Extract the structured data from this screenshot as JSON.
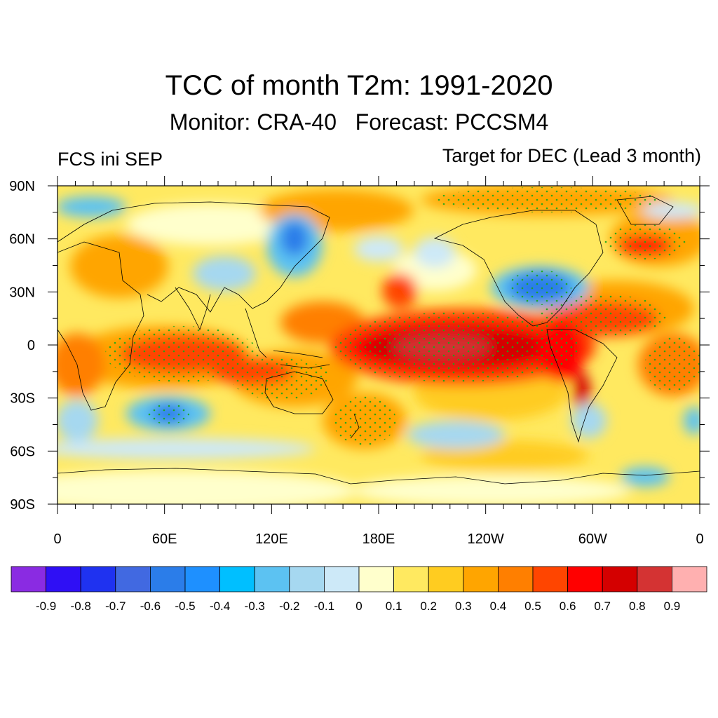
{
  "title": "TCC of month T2m: 1991-2020",
  "subtitle": "Monitor: CRA-40   Forecast: PCCSM4",
  "left_label": "FCS ini SEP",
  "right_label": "Target for DEC (Lead 3 month)",
  "lat_labels": [
    "90N",
    "60N",
    "30N",
    "0",
    "30S",
    "60S",
    "90S"
  ],
  "lon_labels": [
    "0",
    "60E",
    "120E",
    "180E",
    "120W",
    "60W",
    "0"
  ],
  "colorbar": {
    "colors": [
      "#8a2be2",
      "#2f0ff5",
      "#1f32f0",
      "#4169e1",
      "#2b7de9",
      "#1e90ff",
      "#00bfff",
      "#5cc2f2",
      "#a6d8f0",
      "#cde9f8",
      "#ffffcc",
      "#ffe960",
      "#ffcc20",
      "#ffa500",
      "#ff7f00",
      "#ff4500",
      "#ff0000",
      "#d40000",
      "#d43333",
      "#ffb0b0"
    ],
    "labels": [
      "-0.9",
      "-0.8",
      "-0.7",
      "-0.6",
      "-0.5",
      "-0.4",
      "-0.3",
      "-0.2",
      "-0.1",
      "0",
      "0.1",
      "0.2",
      "0.3",
      "0.4",
      "0.5",
      "0.6",
      "0.7",
      "0.8",
      "0.9"
    ]
  },
  "field_summary": {
    "strong_positive_regions": [
      "Central/Eastern Equatorial Pacific",
      "Tropical Indian Ocean",
      "Tropical Atlantic",
      "Northeast Canada/Greenland"
    ],
    "negative_regions": [
      "North America (south-central)",
      "Central Siberia",
      "South Indian Ocean",
      "Southern Ocean"
    ]
  }
}
